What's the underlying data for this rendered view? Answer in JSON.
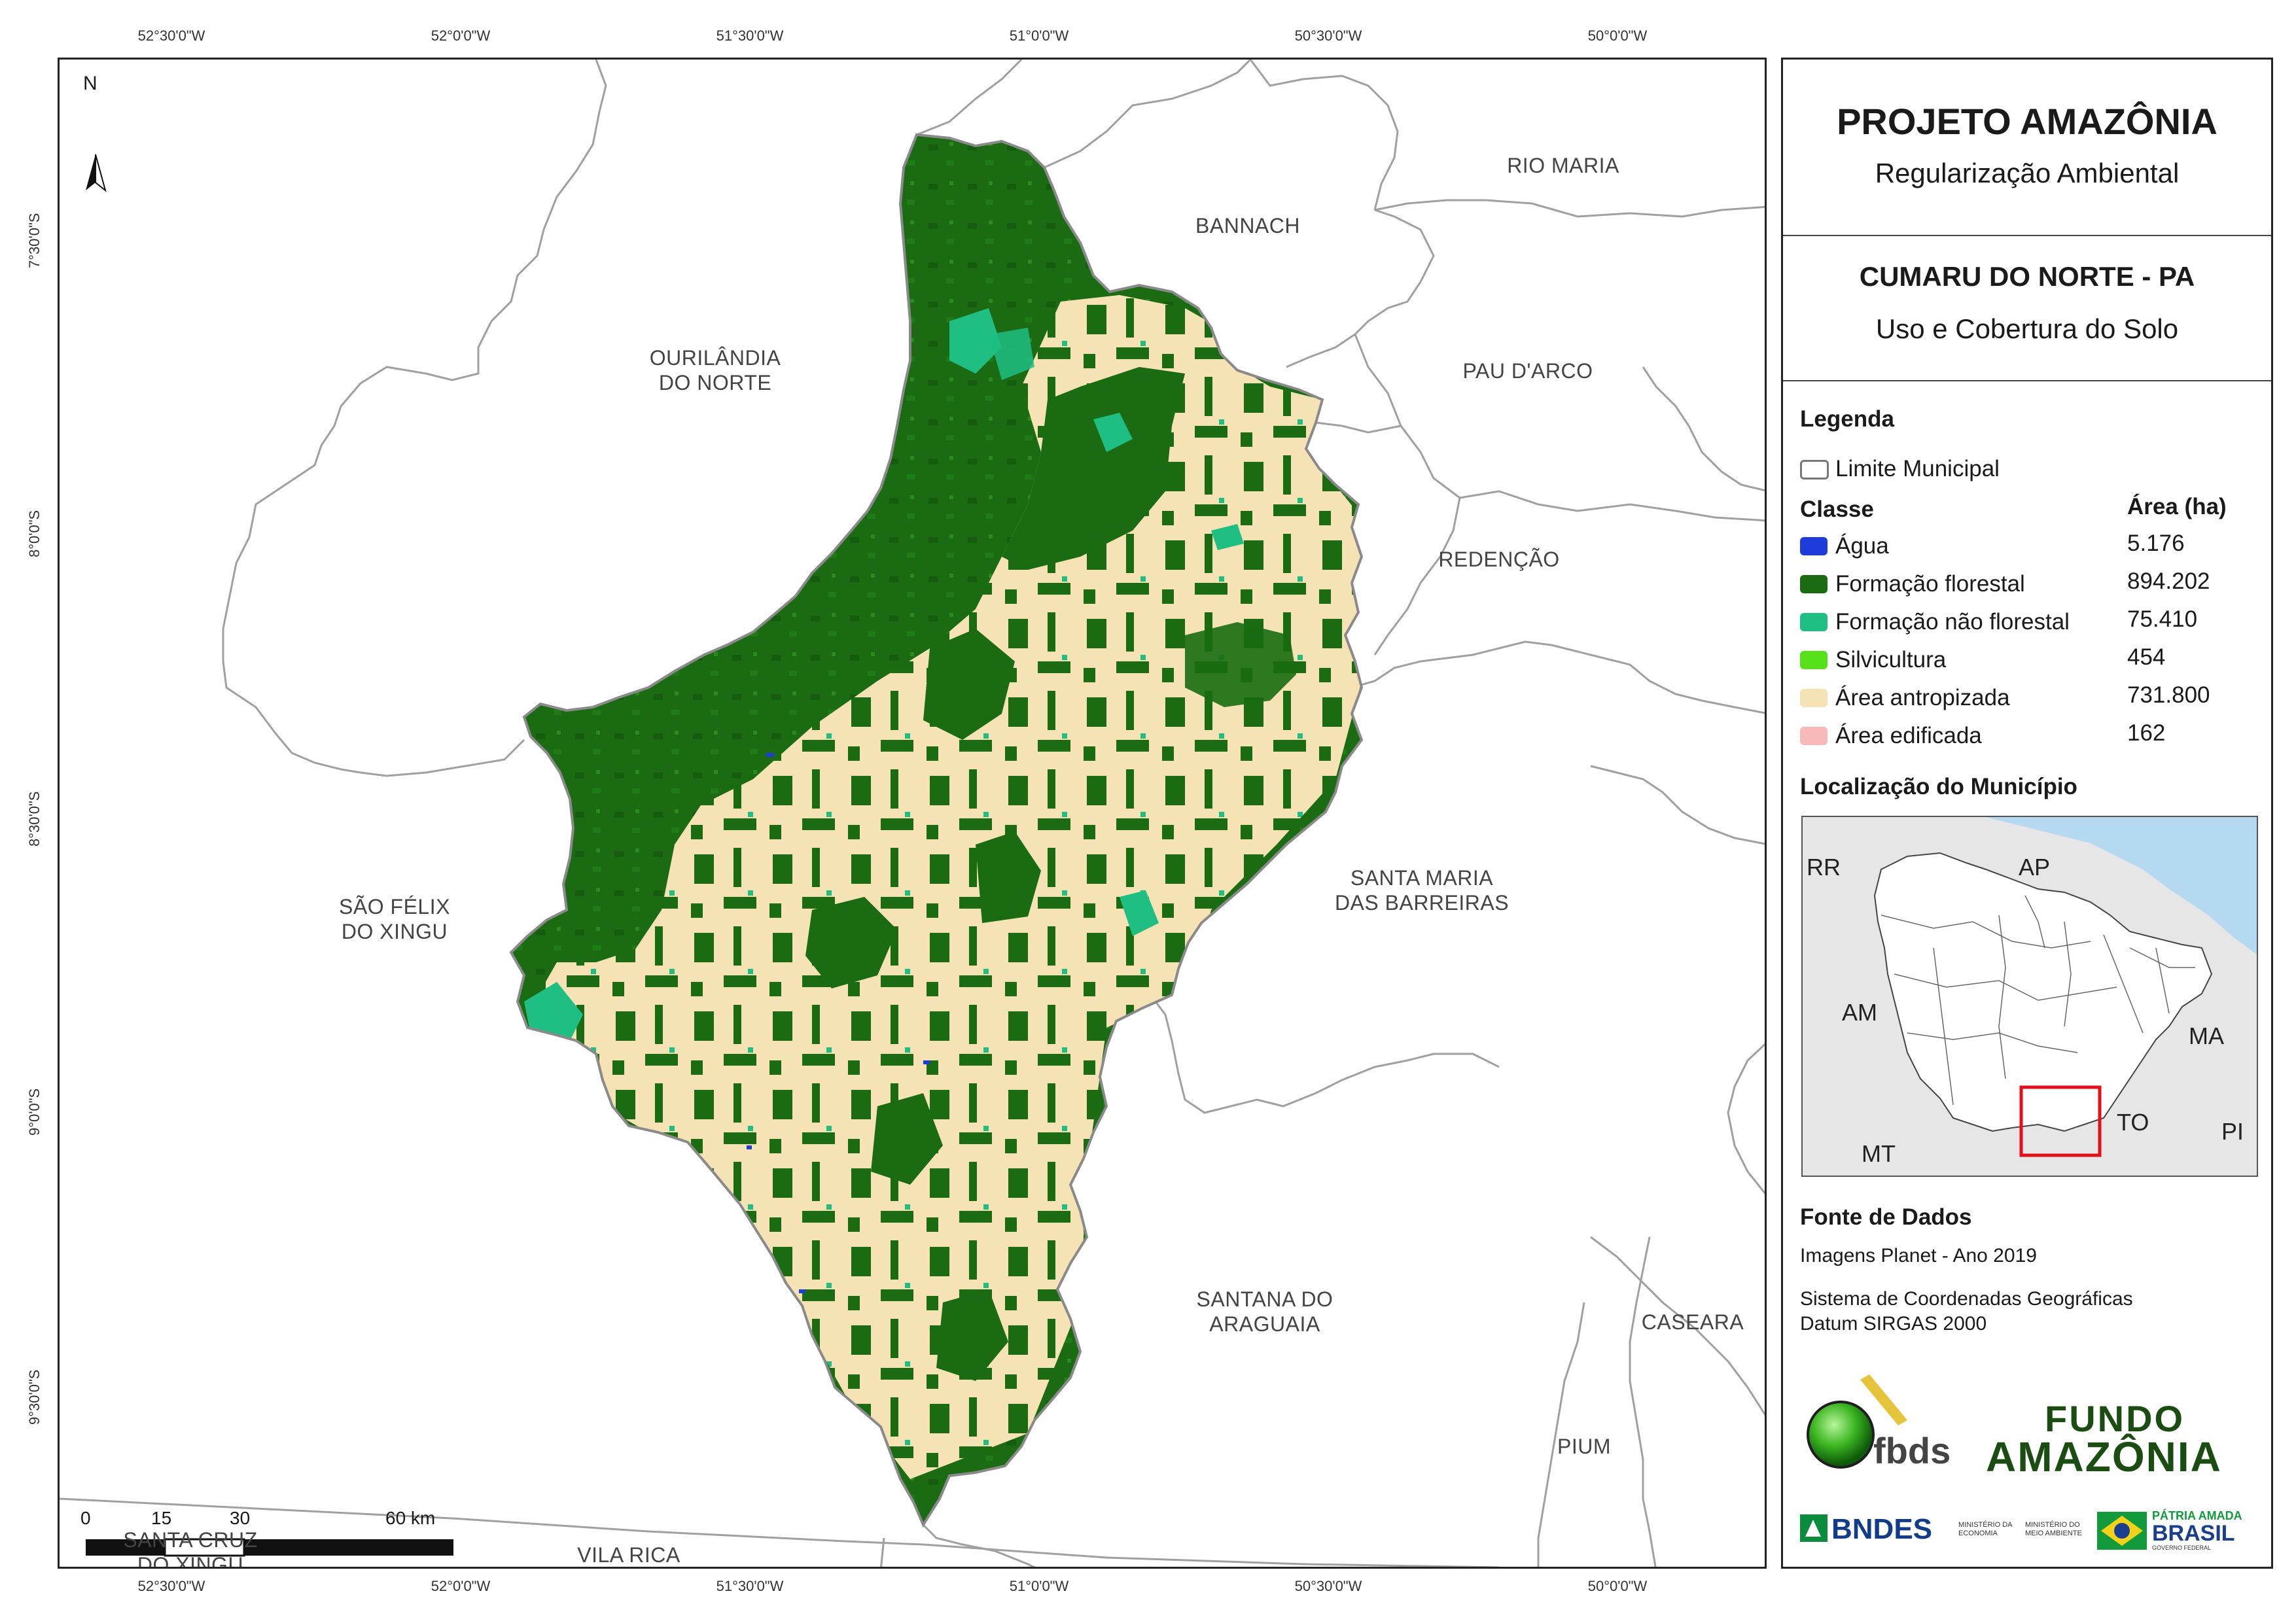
{
  "map": {
    "north_label": "N",
    "top_coords": [
      "52°30'0\"W",
      "52°0'0\"W",
      "51°30'0\"W",
      "51°0'0\"W",
      "50°30'0\"W",
      "50°0'0\"W"
    ],
    "bottom_coords": [
      "52°30'0\"W",
      "52°0'0\"W",
      "51°30'0\"W",
      "51°0'0\"W",
      "50°30'0\"W",
      "50°0'0\"W"
    ],
    "left_coords": [
      "7°30'0\"S",
      "8°0'0\"S",
      "8°30'0\"S",
      "9°0'0\"S",
      "9°30'0\"S"
    ],
    "municipalities": [
      {
        "name": "BANNACH"
      },
      {
        "name": "RIO MARIA"
      },
      {
        "name": "OURILÂNDIA\nDO NORTE"
      },
      {
        "name": "PAU D'ARCO"
      },
      {
        "name": "REDENÇÃO"
      },
      {
        "name": "SANTA MARIA\nDAS BARREIRAS"
      },
      {
        "name": "SÃO FÉLIX\nDO XINGU"
      },
      {
        "name": "SANTANA DO\nARAGUAIA"
      },
      {
        "name": "CASEARA"
      },
      {
        "name": "PIUM"
      },
      {
        "name": "SANTA CRUZ\nDO XINGU"
      },
      {
        "name": "VILA RICA"
      }
    ],
    "scale": {
      "ticks": [
        "0",
        "15",
        "30",
        "60 km"
      ]
    },
    "colors": {
      "forest": "#1a6b12",
      "anthropized": "#f5e3b5",
      "nonforest": "#1fbe82",
      "water": "#1e3cdc",
      "boundary": "#a0a0a0"
    }
  },
  "panel": {
    "project_title": "PROJETO AMAZÔNIA",
    "project_subtitle": "Regularização Ambiental",
    "municipality_title": "CUMARU DO NORTE - PA",
    "map_subject": "Uso e Cobertura do Solo",
    "legend_heading": "Legenda",
    "boundary_label": "Limite Municipal",
    "class_heading": "Classe",
    "area_heading": "Área (ha)",
    "classes": [
      {
        "label": "Água",
        "area": "5.176",
        "color": "#1e3cdc"
      },
      {
        "label": "Formação florestal",
        "area": "894.202",
        "color": "#1a6b12"
      },
      {
        "label": "Formação não florestal",
        "area": "75.410",
        "color": "#1fbe82"
      },
      {
        "label": "Silvicultura",
        "area": "454",
        "color": "#56e01a"
      },
      {
        "label": "Área antropizada",
        "area": "731.800",
        "color": "#f5e3b5"
      },
      {
        "label": "Área edificada",
        "area": "162",
        "color": "#f7b9b9"
      }
    ],
    "location_heading": "Localização do Município",
    "inset_labels": [
      "RR",
      "AP",
      "AM",
      "MA",
      "TO",
      "MT",
      "PI"
    ],
    "sources_heading": "Fonte de Dados",
    "sources_line": "Imagens Planet - Ano 2019",
    "crs_line1": "Sistema de Coordenadas Geográficas",
    "crs_line2": "Datum SIRGAS 2000",
    "logo_fbds": "fbds",
    "logo_fundo_top": "FUNDO",
    "logo_fundo_bottom": "AMAZÔNIA",
    "logo_bndes": "BNDES",
    "logo_min_economia": "MINISTÉRIO DA\nECONOMIA",
    "logo_min_ambiente": "MINISTÉRIO DO\nMEIO AMBIENTE",
    "logo_patria_top": "PÁTRIA AMADA",
    "logo_patria_mid": "BRASIL",
    "logo_patria_bottom": "GOVERNO FEDERAL"
  }
}
